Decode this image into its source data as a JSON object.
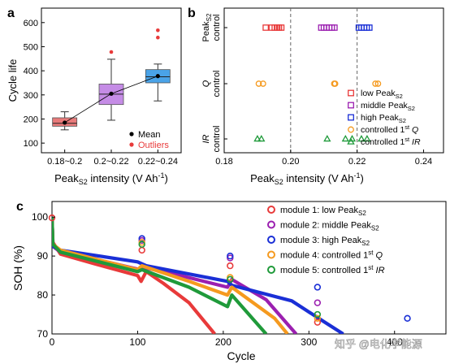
{
  "panels": {
    "a": "a",
    "b": "b",
    "c": "c"
  },
  "watermark": "知乎 @电化学能源",
  "chart_data": [
    {
      "panel": "a",
      "type": "box",
      "ylabel": "Cycle life",
      "xlabel": "Peak",
      "xlabel_sub": "S2",
      "xlabel_tail": " intensity (V Ah",
      "xlabel_sup": "-1",
      "xlabel_close": ")",
      "ylim": [
        60,
        660
      ],
      "yticks": [
        "100",
        "200",
        "300",
        "400",
        "500",
        "600"
      ],
      "categories": [
        "0.18~0.2",
        "0.2~0.22",
        "0.22~0.24"
      ],
      "boxes": [
        {
          "category": "0.18~0.2",
          "color": "#e87a7a",
          "min": 155,
          "q1": 170,
          "median": 182,
          "q3": 205,
          "max": 230,
          "mean": 185,
          "outliers": []
        },
        {
          "category": "0.2~0.22",
          "color": "#c58ce6",
          "min": 195,
          "q1": 260,
          "median": 303,
          "q3": 345,
          "max": 448,
          "mean": 305,
          "outliers": [
            478
          ]
        },
        {
          "category": "0.22~0.24",
          "color": "#4aa3e8",
          "min": 275,
          "q1": 350,
          "median": 375,
          "q3": 405,
          "max": 428,
          "mean": 378,
          "outliers": [
            538,
            568
          ]
        }
      ],
      "legend": [
        {
          "label": "Mean",
          "color": "#000000"
        },
        {
          "label": "Outliers",
          "color": "#e83a3a"
        }
      ]
    },
    {
      "panel": "b",
      "type": "scatter",
      "xlabel": "Peak",
      "xlabel_sub": "S2",
      "xlabel_tail": " intensity (V Ah",
      "xlabel_sup": "-1",
      "xlabel_close": ")",
      "xlim": [
        0.18,
        0.246
      ],
      "xticks": [
        "0.18",
        "0.20",
        "0.22",
        "0.24"
      ],
      "vlines": [
        0.2,
        0.22
      ],
      "rows": [
        {
          "label_main": "Peak",
          "label_sub": "S2",
          "label_line2": "control",
          "italic": false
        },
        {
          "label_main": "Q",
          "label_sub": "",
          "label_line2": "control",
          "italic": true
        },
        {
          "label_main": "IR",
          "label_sub": "",
          "label_line2": "control",
          "italic": true
        }
      ],
      "series": [
        {
          "row": 0,
          "marker": "square",
          "color": "#e83a3a",
          "x": [
            0.1925,
            0.1943,
            0.1952,
            0.196,
            0.1965,
            0.1972
          ]
        },
        {
          "row": 0,
          "marker": "square",
          "color": "#9b1fb0",
          "x": [
            0.2092,
            0.21,
            0.2108,
            0.2116,
            0.2124,
            0.2132
          ]
        },
        {
          "row": 0,
          "marker": "square",
          "color": "#1a2fd6",
          "x": [
            0.2205,
            0.2213,
            0.2221,
            0.2229,
            0.2237
          ]
        },
        {
          "row": 1,
          "marker": "circle",
          "color": "#f59a1f",
          "x": [
            0.1904,
            0.1917,
            0.2131,
            0.2134,
            0.2255,
            0.2263
          ]
        },
        {
          "row": 2,
          "marker": "triangle",
          "color": "#1f9a3a",
          "x": [
            0.19,
            0.1912,
            0.211,
            0.2165,
            0.2185,
            0.2213,
            0.223
          ]
        }
      ],
      "legend": [
        {
          "marker": "square",
          "color": "#e83a3a",
          "text": "low Peak",
          "sub": "S2",
          "sup": "",
          "tail": "",
          "italic_tail": false
        },
        {
          "marker": "square",
          "color": "#9b1fb0",
          "text": "middle Peak",
          "sub": "S2",
          "sup": "",
          "tail": "",
          "italic_tail": false
        },
        {
          "marker": "square",
          "color": "#1a2fd6",
          "text": "high Peak",
          "sub": "S2",
          "sup": "",
          "tail": "",
          "italic_tail": false
        },
        {
          "marker": "circle",
          "color": "#f59a1f",
          "text": "controlled 1",
          "sub": "",
          "sup": "st",
          "tail": " Q",
          "italic_tail": true
        },
        {
          "marker": "triangle",
          "color": "#1f9a3a",
          "text": "controlled 1",
          "sub": "",
          "sup": "st",
          "tail": " IR",
          "italic_tail": true
        }
      ]
    },
    {
      "panel": "c",
      "type": "line",
      "xlabel": "Cycle",
      "ylabel": "SOH (%)",
      "xlim": [
        0,
        460
      ],
      "ylim": [
        70,
        104
      ],
      "xticks": [
        "0",
        "100",
        "200",
        "300",
        "400"
      ],
      "yticks": [
        "70",
        "80",
        "90",
        "100"
      ],
      "series": [
        {
          "name": "module 1: low Peak",
          "sub": "S2",
          "sup": "",
          "tail": "",
          "color": "#e83a3a",
          "curve": [
            [
              0,
              100
            ],
            [
              1,
              93.5
            ],
            [
              10,
              90.5
            ],
            [
              50,
              88
            ],
            [
              100,
              85
            ],
            [
              104,
              83.5
            ],
            [
              110,
              86
            ],
            [
              130,
              83
            ],
            [
              160,
              78
            ],
            [
              190,
              70
            ]
          ],
          "rec_x": [
            0,
            105,
            208,
            310
          ],
          "rec": [
            99.8,
            91.5,
            87.5,
            73
          ]
        },
        {
          "name": "module 2: middle Peak",
          "sub": "S2",
          "sup": "",
          "tail": "",
          "color": "#9b1fb0",
          "curve": [
            [
              0,
              100
            ],
            [
              1,
              92.5
            ],
            [
              10,
              91
            ],
            [
              60,
              88.7
            ],
            [
              103,
              86.5
            ],
            [
              108,
              87
            ],
            [
              150,
              85
            ],
            [
              205,
              82
            ],
            [
              210,
              84
            ],
            [
              250,
              78.8
            ],
            [
              285,
              70
            ]
          ],
          "rec_x": [
            105,
            208,
            310
          ],
          "rec": [
            94,
            89.5,
            78
          ]
        },
        {
          "name": "module 3: high Peak",
          "sub": "S2",
          "sup": "",
          "tail": "",
          "color": "#1a2fd6",
          "curve": [
            [
              0,
              100
            ],
            [
              1,
              92.5
            ],
            [
              10,
              91.5
            ],
            [
              100,
              88.5
            ],
            [
              110,
              87.5
            ],
            [
              205,
              83.5
            ],
            [
              210,
              82.5
            ],
            [
              280,
              78.5
            ],
            [
              315,
              73.5
            ],
            [
              340,
              70
            ]
          ],
          "rec_x": [
            105,
            208,
            310,
            415
          ],
          "rec": [
            94.5,
            90,
            82,
            74
          ]
        },
        {
          "name": "module 4: controlled 1",
          "sub": "",
          "sup": "st",
          "tail": " Q",
          "color": "#f59a1f",
          "curve": [
            [
              0,
              100
            ],
            [
              1,
              93
            ],
            [
              10,
              91.5
            ],
            [
              100,
              86.5
            ],
            [
              105,
              87.5
            ],
            [
              160,
              83.5
            ],
            [
              205,
              80
            ],
            [
              210,
              82
            ],
            [
              260,
              74
            ],
            [
              275,
              70
            ]
          ],
          "rec_x": [
            105,
            208,
            310
          ],
          "rec": [
            93.5,
            84.5,
            74
          ]
        },
        {
          "name": "module 5: controlled 1",
          "sub": "",
          "sup": "st",
          "tail": " IR",
          "color": "#1f9a3a",
          "curve": [
            [
              0,
              100
            ],
            [
              1,
              93
            ],
            [
              10,
              91
            ],
            [
              100,
              86
            ],
            [
              105,
              86.5
            ],
            [
              160,
              82
            ],
            [
              205,
              77
            ],
            [
              210,
              80
            ],
            [
              240,
              72.5
            ],
            [
              250,
              70
            ]
          ],
          "rec_x": [
            105,
            208,
            310
          ],
          "rec": [
            93,
            84,
            75
          ]
        }
      ]
    }
  ]
}
